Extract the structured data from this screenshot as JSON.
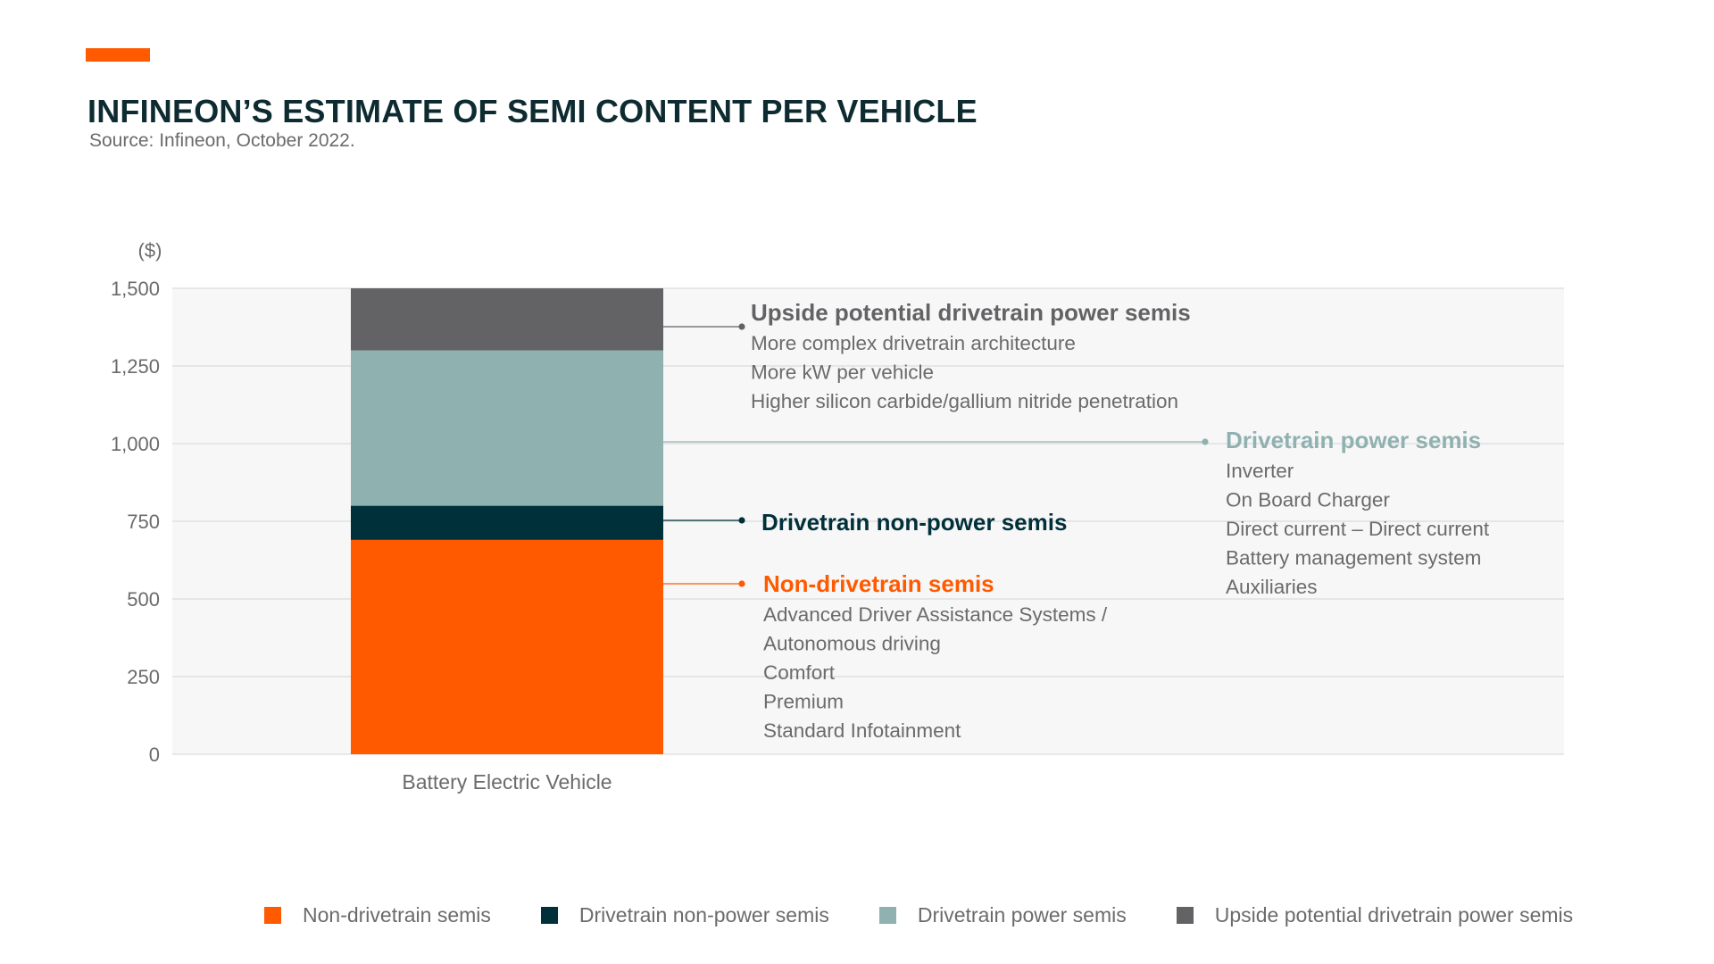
{
  "title": "INFINEON’S ESTIMATE OF SEMI CONTENT PER VEHICLE",
  "subtitle": "Source: Infineon, October 2022.",
  "colors": {
    "accent": "#ff5a00",
    "non_drivetrain": "#ff5a00",
    "drivetrain_non_power": "#00303a",
    "drivetrain_power": "#8fb1b0",
    "upside_potential": "#636366",
    "plot_background": "#f7f7f7",
    "gridline": "#d4d4d4",
    "text_gray": "#6b6b6b"
  },
  "chart_data": {
    "type": "bar",
    "stacked": true,
    "ylabel": "($)",
    "ylim": [
      0,
      1500
    ],
    "yticks": [
      0,
      250,
      500,
      750,
      1000,
      1250,
      1500
    ],
    "ytick_labels": [
      "0",
      "250",
      "500",
      "750",
      "1,000",
      "1,250",
      "1,500"
    ],
    "grid": true,
    "legend_position": "bottom",
    "categories": [
      "Battery Electric Vehicle"
    ],
    "series": [
      {
        "key": "non_drivetrain",
        "name": "Non-drivetrain semis",
        "values": [
          690
        ]
      },
      {
        "key": "drivetrain_non_power",
        "name": "Drivetrain non-power semis",
        "values": [
          110
        ]
      },
      {
        "key": "drivetrain_power",
        "name": "Drivetrain power semis",
        "values": [
          500
        ]
      },
      {
        "key": "upside_potential",
        "name": "Upside potential drivetrain power semis",
        "values": [
          200
        ]
      }
    ],
    "annotations": [
      {
        "series": "upside_potential",
        "title": "Upside potential drivetrain power semis",
        "lines": [
          "More complex drivetrain architecture",
          "More kW per vehicle",
          "Higher silicon carbide/gallium nitride penetration"
        ]
      },
      {
        "series": "drivetrain_power",
        "title": "Drivetrain power semis",
        "lines": [
          "Inverter",
          "On Board Charger",
          "Direct current – Direct current",
          "Battery management system",
          "Auxiliaries"
        ]
      },
      {
        "series": "drivetrain_non_power",
        "title": "Drivetrain non-power semis",
        "lines": []
      },
      {
        "series": "non_drivetrain",
        "title": "Non-drivetrain semis",
        "lines": [
          "Advanced Driver Assistance Systems /",
          "Autonomous driving",
          "Comfort",
          "Premium",
          "Standard Infotainment"
        ]
      }
    ]
  }
}
